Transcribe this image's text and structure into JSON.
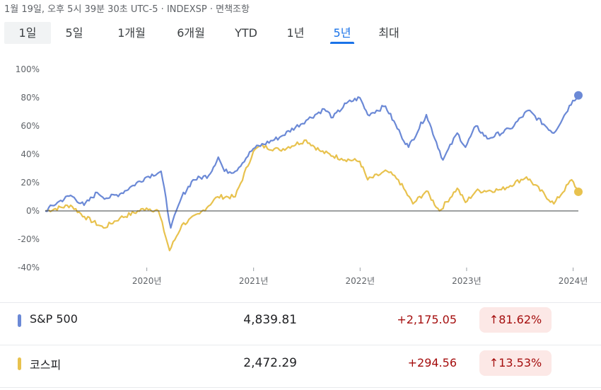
{
  "header": {
    "info": "1월 19일, 오후 5시 39분 30초 UTC-5 · INDEXSP · 면책조항"
  },
  "tabs": [
    {
      "label": "1일",
      "selected": false
    },
    {
      "label": "5일",
      "selected": false
    },
    {
      "label": "1개월",
      "selected": false
    },
    {
      "label": "6개월",
      "selected": false
    },
    {
      "label": "YTD",
      "selected": false
    },
    {
      "label": "1년",
      "selected": false
    },
    {
      "label": "5년",
      "selected": true
    },
    {
      "label": "최대",
      "selected": false
    }
  ],
  "chart_data": {
    "type": "line",
    "y_tick_labels": [
      "100%",
      "80%",
      "60%",
      "40%",
      "20%",
      "0%",
      "-20%",
      "-40%"
    ],
    "y_ticks": [
      100,
      80,
      60,
      40,
      20,
      0,
      -20,
      -40
    ],
    "ylim": [
      -40,
      100
    ],
    "x_tick_labels": [
      "2020년",
      "2021년",
      "2022년",
      "2023년",
      "2024년"
    ],
    "x_tick_dates": [
      "2020-01-01",
      "2021-01-01",
      "2022-01-01",
      "2023-01-01",
      "2024-01-01"
    ],
    "xlim": [
      "2019-01-18",
      "2024-01-19"
    ],
    "grid": false,
    "baseline": 0,
    "series": [
      {
        "name": "S&P 500",
        "color": "#6b89d6",
        "points": [
          [
            "2019-01-18",
            0
          ],
          [
            "2019-03-01",
            6
          ],
          [
            "2019-04-15",
            11
          ],
          [
            "2019-05-31",
            4
          ],
          [
            "2019-07-15",
            13
          ],
          [
            "2019-08-15",
            9
          ],
          [
            "2019-10-01",
            12
          ],
          [
            "2019-11-15",
            18
          ],
          [
            "2019-12-31",
            24
          ],
          [
            "2020-02-19",
            28
          ],
          [
            "2020-03-23",
            -12
          ],
          [
            "2020-04-30",
            10
          ],
          [
            "2020-06-08",
            22
          ],
          [
            "2020-07-31",
            25
          ],
          [
            "2020-09-02",
            38
          ],
          [
            "2020-09-23",
            28
          ],
          [
            "2020-10-30",
            28
          ],
          [
            "2020-12-31",
            44
          ],
          [
            "2021-03-31",
            52
          ],
          [
            "2021-06-30",
            64
          ],
          [
            "2021-08-31",
            72
          ],
          [
            "2021-09-30",
            66
          ],
          [
            "2021-11-15",
            76
          ],
          [
            "2021-12-31",
            80
          ],
          [
            "2022-01-27",
            68
          ],
          [
            "2022-03-29",
            74
          ],
          [
            "2022-05-20",
            54
          ],
          [
            "2022-06-16",
            45
          ],
          [
            "2022-08-16",
            68
          ],
          [
            "2022-10-12",
            36
          ],
          [
            "2022-11-30",
            55
          ],
          [
            "2022-12-28",
            45
          ],
          [
            "2023-02-02",
            60
          ],
          [
            "2023-03-13",
            51
          ],
          [
            "2023-05-31",
            58
          ],
          [
            "2023-07-31",
            71
          ],
          [
            "2023-10-27",
            55
          ],
          [
            "2023-12-31",
            78
          ],
          [
            "2024-01-19",
            81.62
          ]
        ]
      },
      {
        "name": "코스피",
        "color": "#e8c24e",
        "points": [
          [
            "2019-01-18",
            0
          ],
          [
            "2019-04-15",
            4
          ],
          [
            "2019-06-01",
            -4
          ],
          [
            "2019-08-06",
            -12
          ],
          [
            "2019-10-01",
            -5
          ],
          [
            "2019-12-31",
            2
          ],
          [
            "2020-02-10",
            0
          ],
          [
            "2020-03-19",
            -28
          ],
          [
            "2020-04-30",
            -10
          ],
          [
            "2020-06-30",
            -2
          ],
          [
            "2020-08-31",
            10
          ],
          [
            "2020-10-30",
            10
          ],
          [
            "2020-12-31",
            42
          ],
          [
            "2021-01-25",
            46
          ],
          [
            "2021-03-31",
            43
          ],
          [
            "2021-06-30",
            50
          ],
          [
            "2021-08-20",
            42
          ],
          [
            "2021-10-29",
            37
          ],
          [
            "2021-12-31",
            35
          ],
          [
            "2022-01-27",
            22
          ],
          [
            "2022-04-04",
            28
          ],
          [
            "2022-05-12",
            22
          ],
          [
            "2022-07-01",
            5
          ],
          [
            "2022-08-16",
            14
          ],
          [
            "2022-09-30",
            0
          ],
          [
            "2022-11-30",
            16
          ],
          [
            "2022-12-28",
            6
          ],
          [
            "2023-02-02",
            14
          ],
          [
            "2023-04-30",
            15
          ],
          [
            "2023-07-25",
            24
          ],
          [
            "2023-10-27",
            5
          ],
          [
            "2023-12-27",
            22
          ],
          [
            "2024-01-19",
            13.53
          ]
        ]
      }
    ]
  },
  "rows": [
    {
      "name": "S&P 500",
      "price": "4,839.81",
      "change": "+2,175.05",
      "percent": "81.62%",
      "color": "#6b89d6"
    },
    {
      "name": "코스피",
      "price": "2,472.29",
      "change": "+294.56",
      "percent": "13.53%",
      "color": "#e8c24e"
    }
  ],
  "icons": {
    "up_arrow": "arrow-up-icon"
  }
}
